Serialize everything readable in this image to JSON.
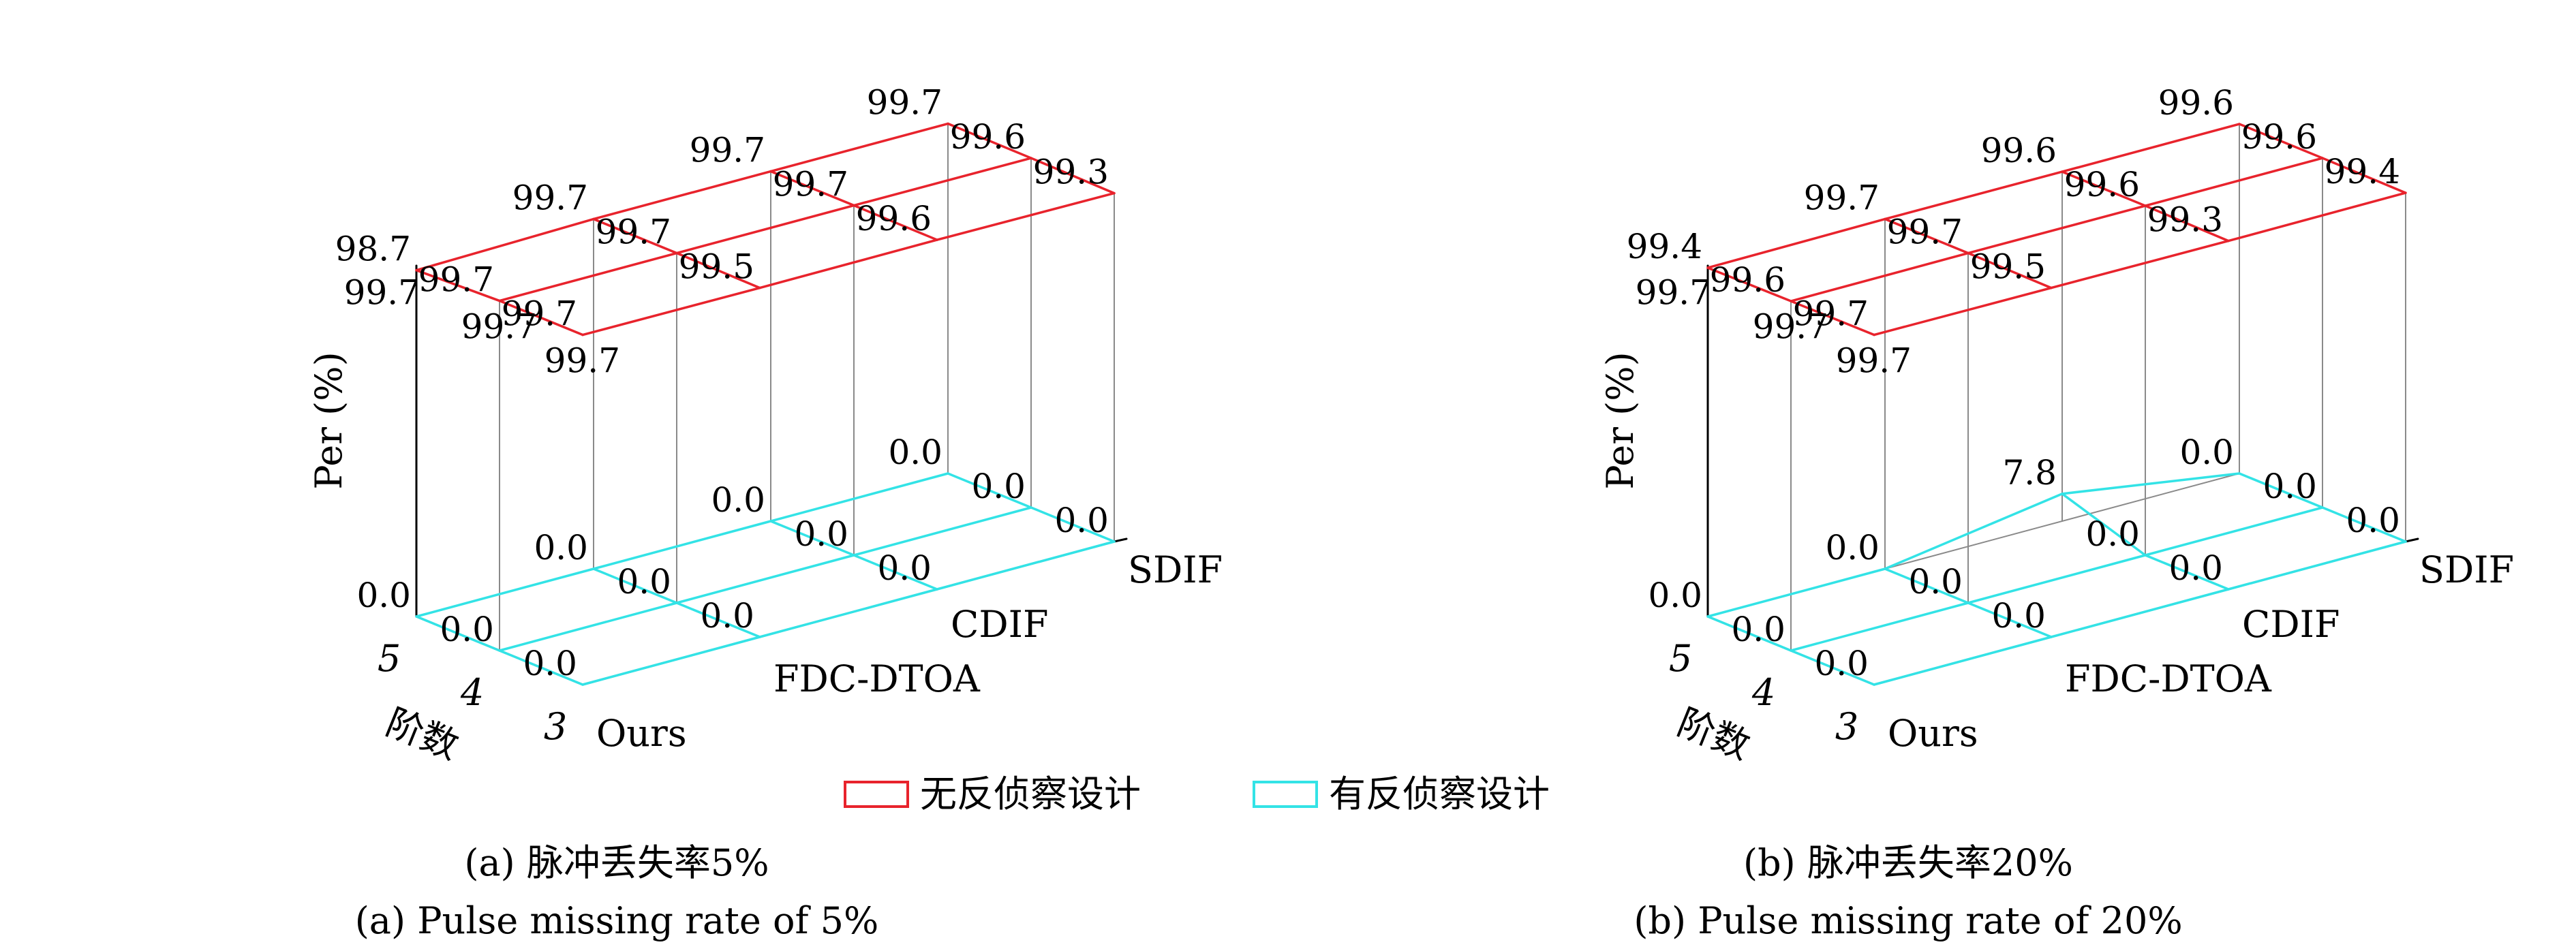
{
  "legend": {
    "entries": [
      {
        "label": "无反侦察设计",
        "color": "#e8232c"
      },
      {
        "label": "有反侦察设计",
        "color": "#33e3e6"
      }
    ]
  },
  "chart_data": [
    {
      "type": "3d-grid",
      "caption_cn": "(a) 脉冲丢失率5%",
      "caption_en": "(a) Pulse missing rate of 5%",
      "zlabel": "Per (%)",
      "ylabel": "阶数",
      "methods": [
        "Ours",
        "FDC-DTOA",
        "CDIF",
        "SDIF"
      ],
      "orders": [
        "3",
        "4",
        "5"
      ],
      "series": [
        {
          "name": "无反侦察设计",
          "values": [
            [
              99.7,
              99.5,
              99.6,
              99.3
            ],
            [
              99.7,
              99.7,
              99.7,
              99.6
            ],
            [
              98.7,
              99.7,
              99.7,
              99.7
            ]
          ]
        },
        {
          "name": "有反侦察设计",
          "values": [
            [
              0.0,
              0.0,
              0.0,
              0.0
            ],
            [
              0.0,
              0.0,
              0.0,
              0.0
            ],
            [
              0.0,
              0.0,
              0.0,
              0.0
            ]
          ]
        }
      ],
      "black_labels": [
        "99.7",
        "99.7",
        "99.7"
      ]
    },
    {
      "type": "3d-grid",
      "caption_cn": "(b) 脉冲丢失率20%",
      "caption_en": "(b) Pulse missing rate of 20%",
      "zlabel": "Per (%)",
      "ylabel": "阶数",
      "methods": [
        "Ours",
        "FDC-DTOA",
        "CDIF",
        "SDIF"
      ],
      "orders": [
        "3",
        "4",
        "5"
      ],
      "series": [
        {
          "name": "无反侦察设计",
          "values": [
            [
              99.7,
              99.5,
              99.3,
              99.4
            ],
            [
              99.6,
              99.7,
              99.6,
              99.6
            ],
            [
              99.4,
              99.7,
              99.6,
              99.6
            ]
          ]
        },
        {
          "name": "有反侦察设计",
          "values": [
            [
              0.0,
              0.0,
              0.0,
              0.0
            ],
            [
              0.0,
              0.0,
              0.0,
              0.0
            ],
            [
              0.0,
              0.0,
              7.8,
              0.0
            ]
          ]
        }
      ],
      "black_labels": [
        "99.7",
        "99.7",
        "99.7"
      ]
    }
  ]
}
